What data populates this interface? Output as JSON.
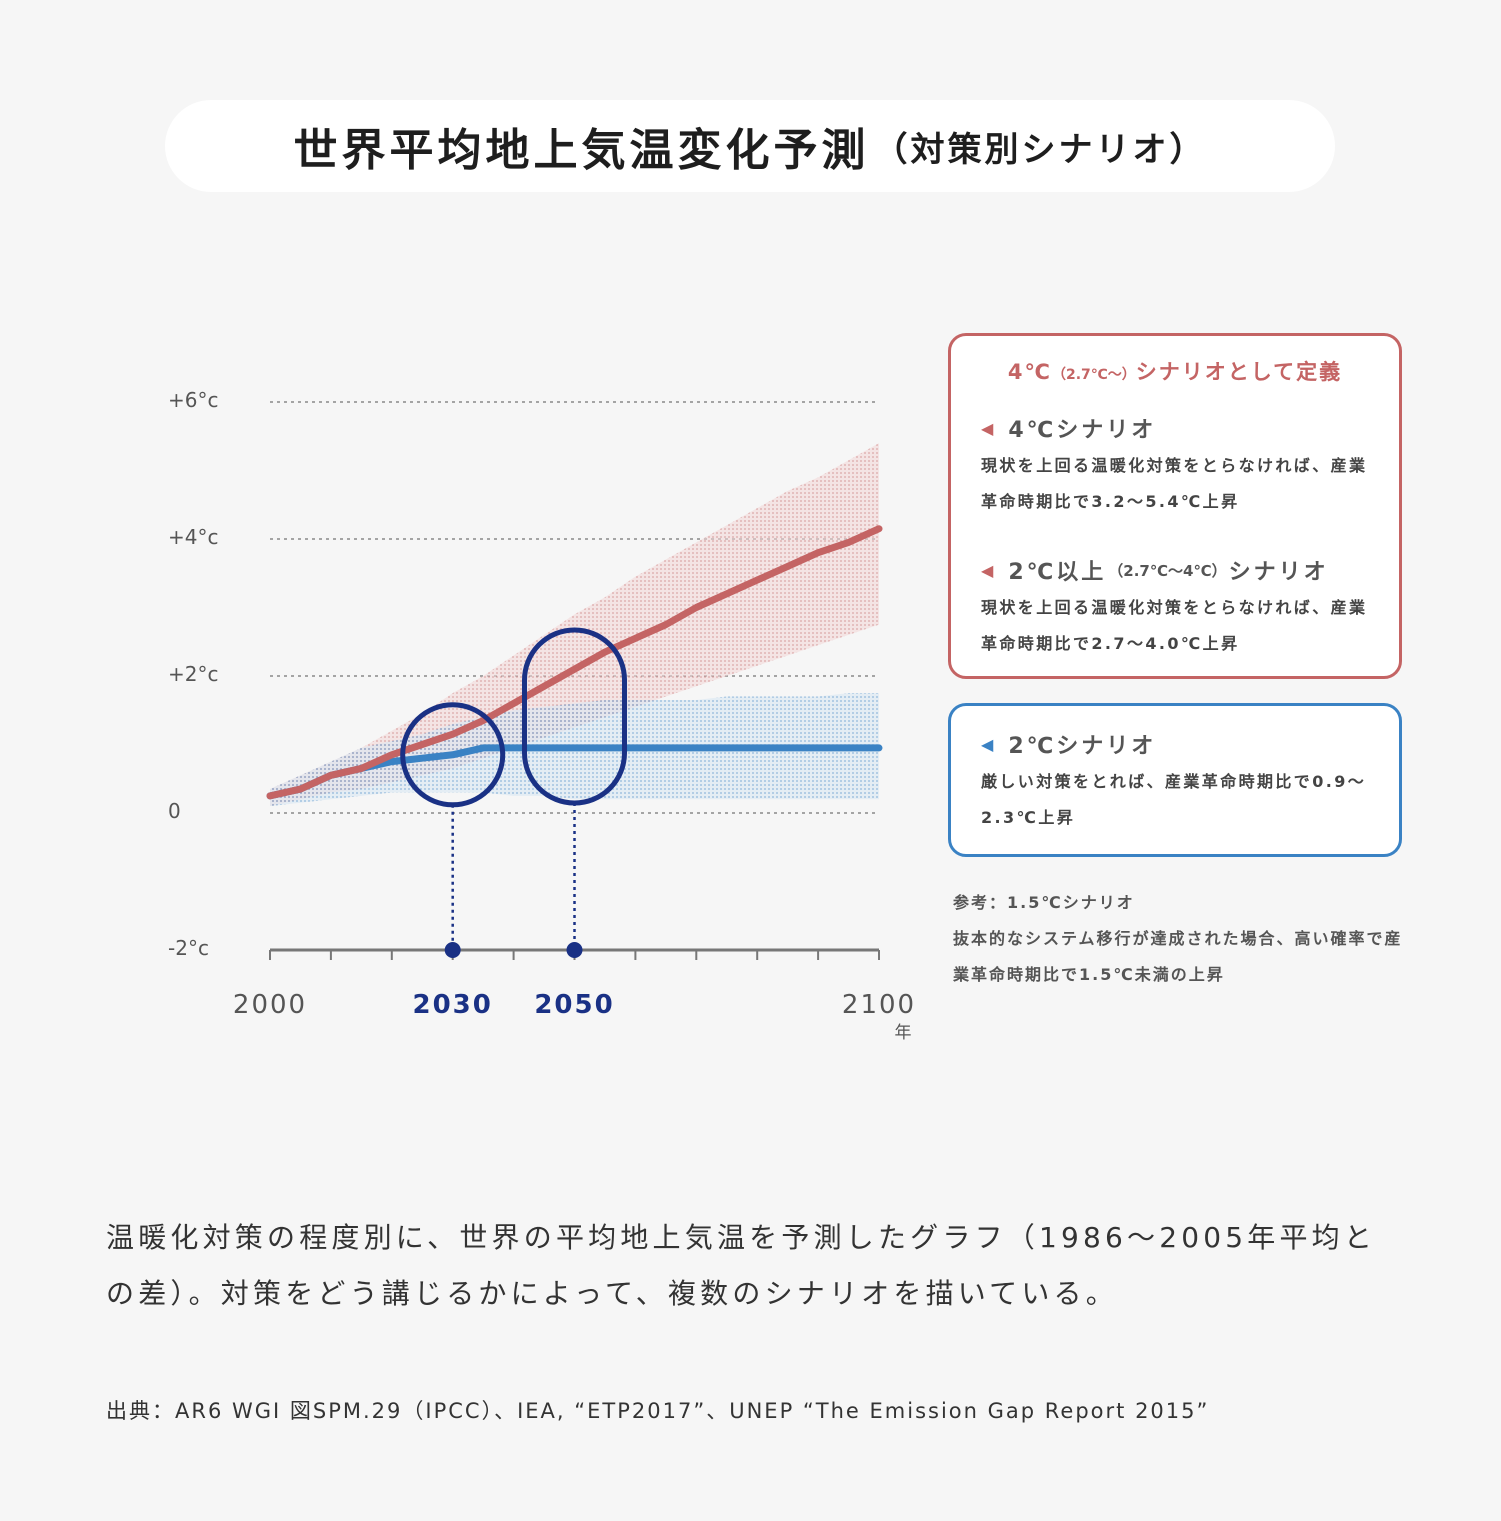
{
  "title": {
    "main": "世界平均地上気温変化予測",
    "sub": "（対策別シナリオ）"
  },
  "colors": {
    "red": "#c46464",
    "blue": "#3a82c4",
    "navy": "#1a3185",
    "axis": "#777777",
    "background": "#f6f6f6"
  },
  "chart_data": {
    "type": "line",
    "x_unit": "年",
    "y_unit": "°c",
    "xlim": [
      2000,
      2100
    ],
    "ylim": [
      -2,
      6
    ],
    "y_ticks": [
      {
        "value": 6,
        "label": "+6°c"
      },
      {
        "value": 4,
        "label": "+4°c"
      },
      {
        "value": 2,
        "label": "+2°c"
      },
      {
        "value": 0,
        "label": "0"
      },
      {
        "value": -2,
        "label": "-2°c"
      }
    ],
    "x_ticks": [
      {
        "value": 2000,
        "label": "2000",
        "highlight": false
      },
      {
        "value": 2030,
        "label": "2030",
        "highlight": true
      },
      {
        "value": 2050,
        "label": "2050",
        "highlight": true
      },
      {
        "value": 2100,
        "label": "2100",
        "highlight": false
      }
    ],
    "grid": "dashed horizontal",
    "legend": "right",
    "series": [
      {
        "name": "4℃シナリオ",
        "color": "#c46464",
        "x": [
          2000,
          2005,
          2010,
          2015,
          2020,
          2025,
          2030,
          2035,
          2040,
          2045,
          2050,
          2055,
          2060,
          2065,
          2070,
          2075,
          2080,
          2085,
          2090,
          2095,
          2100
        ],
        "y": [
          0.25,
          0.35,
          0.55,
          0.65,
          0.85,
          1.0,
          1.15,
          1.35,
          1.6,
          1.85,
          2.1,
          2.35,
          2.55,
          2.75,
          3.0,
          3.2,
          3.4,
          3.6,
          3.8,
          3.95,
          4.15
        ],
        "band_low": [
          0.1,
          0.2,
          0.3,
          0.35,
          0.45,
          0.55,
          0.65,
          0.8,
          0.95,
          1.1,
          1.25,
          1.4,
          1.55,
          1.7,
          1.85,
          2.0,
          2.15,
          2.3,
          2.45,
          2.6,
          2.75
        ],
        "band_high": [
          0.35,
          0.55,
          0.75,
          0.95,
          1.2,
          1.45,
          1.75,
          2.0,
          2.3,
          2.6,
          2.9,
          3.15,
          3.45,
          3.7,
          3.95,
          4.2,
          4.45,
          4.7,
          4.9,
          5.15,
          5.4
        ]
      },
      {
        "name": "2℃シナリオ",
        "color": "#3a82c4",
        "x": [
          2000,
          2005,
          2010,
          2015,
          2020,
          2025,
          2030,
          2035,
          2040,
          2045,
          2050,
          2055,
          2060,
          2065,
          2070,
          2075,
          2080,
          2085,
          2090,
          2095,
          2100
        ],
        "y": [
          0.25,
          0.35,
          0.55,
          0.65,
          0.75,
          0.8,
          0.85,
          0.95,
          0.95,
          0.95,
          0.95,
          0.95,
          0.95,
          0.95,
          0.95,
          0.95,
          0.95,
          0.95,
          0.95,
          0.95,
          0.95
        ],
        "band_low": [
          0.1,
          0.15,
          0.2,
          0.25,
          0.3,
          0.3,
          0.3,
          0.3,
          0.25,
          0.25,
          0.2,
          0.2,
          0.2,
          0.2,
          0.2,
          0.2,
          0.2,
          0.2,
          0.2,
          0.2,
          0.2
        ],
        "band_high": [
          0.35,
          0.55,
          0.75,
          0.95,
          1.05,
          1.15,
          1.3,
          1.4,
          1.5,
          1.55,
          1.6,
          1.65,
          1.65,
          1.65,
          1.65,
          1.7,
          1.7,
          1.7,
          1.7,
          1.75,
          1.75
        ]
      }
    ],
    "highlights": [
      {
        "year": 2030,
        "shape": "circle"
      },
      {
        "year": 2050,
        "shape": "pill"
      }
    ]
  },
  "legend": {
    "red_box": {
      "header_pre": "4℃",
      "header_small": "（2.7℃〜）",
      "header_post": "シナリオとして定義",
      "items": [
        {
          "title": "4℃シナリオ",
          "title_small": "",
          "title_post": "",
          "desc": "現状を上回る温暖化対策をとらなければ、産業革命時期比で3.2〜5.4℃上昇"
        },
        {
          "title": "2℃以上",
          "title_small": "（2.7℃〜4℃）",
          "title_post": "シナリオ",
          "desc": "現状を上回る温暖化対策をとらなければ、産業革命時期比で2.7〜4.0℃上昇"
        }
      ]
    },
    "blue_box": {
      "title": "2℃シナリオ",
      "desc": "厳しい対策をとれば、産業革命時期比で0.9〜2.3℃上昇"
    },
    "reference": {
      "title": "参考：1.5℃シナリオ",
      "desc": "抜本的なシステム移行が達成された場合、高い確率で産業革命時期比で1.5℃未満の上昇"
    }
  },
  "caption": "温暖化対策の程度別に、世界の平均地上気温を予測したグラフ（1986〜2005年平均との差）。対策をどう講じるかによって、複数のシナリオを描いている。",
  "source": "出典：AR6 WGI 図SPM.29（IPCC）、IEA, “ETP2017”、UNEP “The Emission Gap Report 2015”"
}
